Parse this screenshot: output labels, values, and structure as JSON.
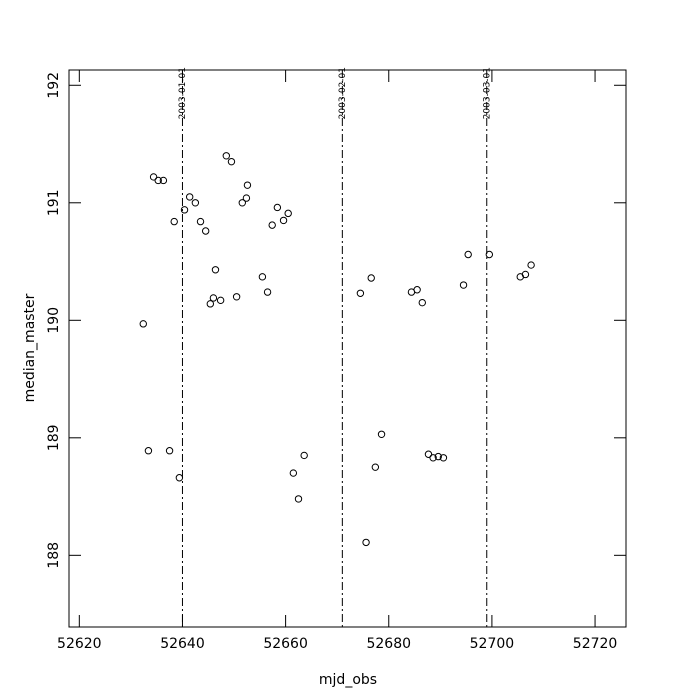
{
  "chart_data": {
    "type": "scatter",
    "x_label": "mjd_obs",
    "y_label": "median_master",
    "x": [
      52632.4,
      52633.4,
      52634.4,
      52635.3,
      52636.3,
      52637.5,
      52638.4,
      52639.4,
      52640.4,
      52641.4,
      52642.5,
      52643.5,
      52644.5,
      52645.4,
      52646.0,
      52646.4,
      52647.4,
      52648.5,
      52649.5,
      52650.5,
      52651.6,
      52652.4,
      52652.6,
      52655.5,
      52656.5,
      52657.4,
      52658.4,
      52659.6,
      52660.5,
      52661.5,
      52662.5,
      52663.6,
      52674.5,
      52675.6,
      52676.6,
      52677.4,
      52678.6,
      52684.4,
      52685.5,
      52686.5,
      52687.7,
      52688.6,
      52689.6,
      52690.6,
      52694.5,
      52695.4,
      52699.5,
      52705.5,
      52706.5,
      52707.6
    ],
    "values": [
      189.97,
      188.89,
      191.22,
      191.19,
      191.19,
      188.89,
      190.84,
      188.66,
      190.94,
      191.05,
      191.0,
      190.84,
      190.76,
      190.14,
      190.19,
      190.43,
      190.17,
      191.4,
      191.35,
      190.2,
      191.0,
      191.04,
      191.15,
      190.37,
      190.24,
      190.81,
      190.96,
      190.85,
      190.91,
      188.7,
      188.48,
      188.85,
      190.23,
      188.11,
      190.36,
      188.75,
      189.03,
      190.24,
      190.26,
      190.15,
      188.86,
      188.83,
      188.84,
      188.83,
      190.3,
      190.56,
      190.56,
      190.37,
      190.39,
      190.47
    ],
    "color": "#000000",
    "xlim": [
      52618,
      52726
    ],
    "ylim": [
      187.39,
      192.13
    ],
    "xticks": [
      52620,
      52640,
      52660,
      52680,
      52700,
      52720
    ],
    "yticks": [
      188,
      189,
      190,
      191,
      192
    ],
    "vlines": [
      {
        "value": 52640,
        "label": "2003-01-01"
      },
      {
        "value": 52671,
        "label": "2003-02-01"
      },
      {
        "value": 52699,
        "label": "2003-03-01"
      }
    ]
  }
}
